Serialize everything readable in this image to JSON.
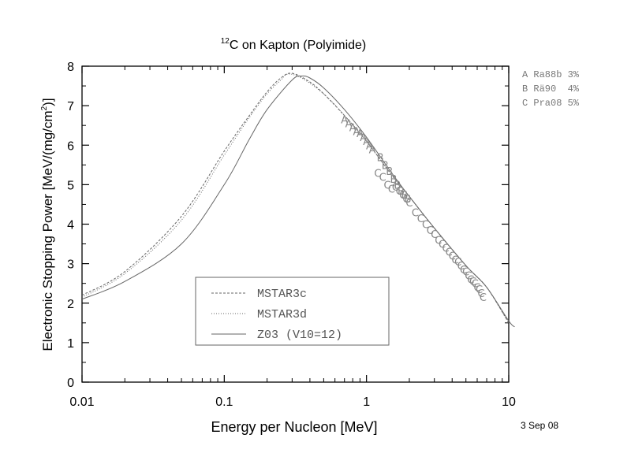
{
  "chart_data": {
    "type": "line",
    "title": {
      "sup": "12",
      "main": "C on Kapton (Polyimide)"
    },
    "xlabel": "Energy per Nucleon [MeV]",
    "ylabel": {
      "main": "Electronic Stopping Power [MeV/(mg/cm",
      "sup": "2",
      "end": ")]"
    },
    "xscale": "log",
    "xlim": [
      0.01,
      10
    ],
    "ylim": [
      0,
      8
    ],
    "x_ticks": [
      {
        "v": 0.01,
        "label": "0.01"
      },
      {
        "v": 0.1,
        "label": "0.1"
      },
      {
        "v": 1,
        "label": "1"
      },
      {
        "v": 10,
        "label": "10"
      }
    ],
    "y_ticks": [
      {
        "v": 0,
        "label": "0"
      },
      {
        "v": 1,
        "label": "1"
      },
      {
        "v": 2,
        "label": "2"
      },
      {
        "v": 3,
        "label": "3"
      },
      {
        "v": 4,
        "label": "4"
      },
      {
        "v": 5,
        "label": "5"
      },
      {
        "v": 6,
        "label": "6"
      },
      {
        "v": 7,
        "label": "7"
      },
      {
        "v": 8,
        "label": "8"
      }
    ],
    "date": "3 Sep 08",
    "legend_position": "lower-left inside plot",
    "series": [
      {
        "name": "MSTAR3c",
        "style": "dashed",
        "color": "#666666",
        "x": [
          0.01,
          0.02,
          0.05,
          0.1,
          0.15,
          0.2,
          0.25,
          0.3,
          0.4,
          0.5,
          0.7,
          1.0,
          1.5,
          2.0,
          3.0,
          5.0,
          7.0,
          10.0
        ],
        "y": [
          2.2,
          2.8,
          4.2,
          5.85,
          6.75,
          7.35,
          7.7,
          7.82,
          7.6,
          7.3,
          6.75,
          6.1,
          5.25,
          4.7,
          3.9,
          2.95,
          2.4,
          1.5
        ]
      },
      {
        "name": "MSTAR3d",
        "style": "dotted",
        "color": "#666666",
        "x": [
          0.01,
          0.02,
          0.05,
          0.1,
          0.15,
          0.2,
          0.25,
          0.28,
          0.35,
          0.5,
          0.7,
          1.0,
          1.5,
          2.0,
          3.0,
          5.0,
          7.0,
          10.0
        ],
        "y": [
          2.15,
          2.75,
          4.1,
          5.75,
          6.7,
          7.3,
          7.65,
          7.8,
          7.7,
          7.3,
          6.75,
          6.1,
          5.25,
          4.7,
          3.9,
          2.95,
          2.4,
          1.5
        ]
      },
      {
        "name": "Z03 (V10=12)",
        "style": "solid",
        "color": "#666666",
        "x": [
          0.01,
          0.02,
          0.05,
          0.1,
          0.15,
          0.2,
          0.3,
          0.35,
          0.4,
          0.5,
          0.7,
          1.0,
          1.5,
          2.0,
          3.0,
          5.0,
          7.0,
          10.0,
          11.0
        ],
        "y": [
          2.1,
          2.55,
          3.5,
          5.0,
          6.15,
          6.9,
          7.65,
          7.75,
          7.7,
          7.45,
          6.9,
          6.2,
          5.3,
          4.7,
          3.9,
          2.95,
          2.4,
          1.55,
          1.4
        ]
      }
    ],
    "data_sets": [
      {
        "letter": "A",
        "label": "A Ra88b 3%",
        "x": [
          0.7,
          0.75,
          0.8,
          0.85,
          0.9,
          0.95,
          1.0,
          1.05,
          1.1
        ],
        "y": [
          6.65,
          6.55,
          6.45,
          6.35,
          6.3,
          6.2,
          6.1,
          6.0,
          5.9
        ]
      },
      {
        "letter": "B",
        "label": "B Rä90  4%",
        "x": [
          1.25,
          1.35,
          1.45,
          1.55,
          1.65,
          1.75,
          1.85,
          1.95
        ],
        "y": [
          5.7,
          5.5,
          5.35,
          5.15,
          5.0,
          4.85,
          4.75,
          4.65
        ]
      },
      {
        "letter": "C",
        "label": "C Pra08 5%",
        "x": [
          1.2,
          1.3,
          1.4,
          1.5,
          1.6,
          1.7,
          1.8,
          1.9,
          2.0,
          2.2,
          2.4,
          2.6,
          2.8,
          3.0,
          3.2,
          3.4,
          3.6,
          3.8,
          4.0,
          4.2,
          4.4,
          4.6,
          4.8,
          5.0,
          5.2,
          5.4,
          5.6,
          5.8,
          6.0,
          6.2,
          6.4,
          6.6
        ],
        "y": [
          5.3,
          5.2,
          5.0,
          4.9,
          4.95,
          4.85,
          4.75,
          4.65,
          4.55,
          4.3,
          4.15,
          4.0,
          3.85,
          3.75,
          3.6,
          3.5,
          3.4,
          3.3,
          3.2,
          3.1,
          3.05,
          2.95,
          2.85,
          2.8,
          2.7,
          2.6,
          2.55,
          2.5,
          2.4,
          2.35,
          2.25,
          2.15
        ]
      }
    ]
  }
}
